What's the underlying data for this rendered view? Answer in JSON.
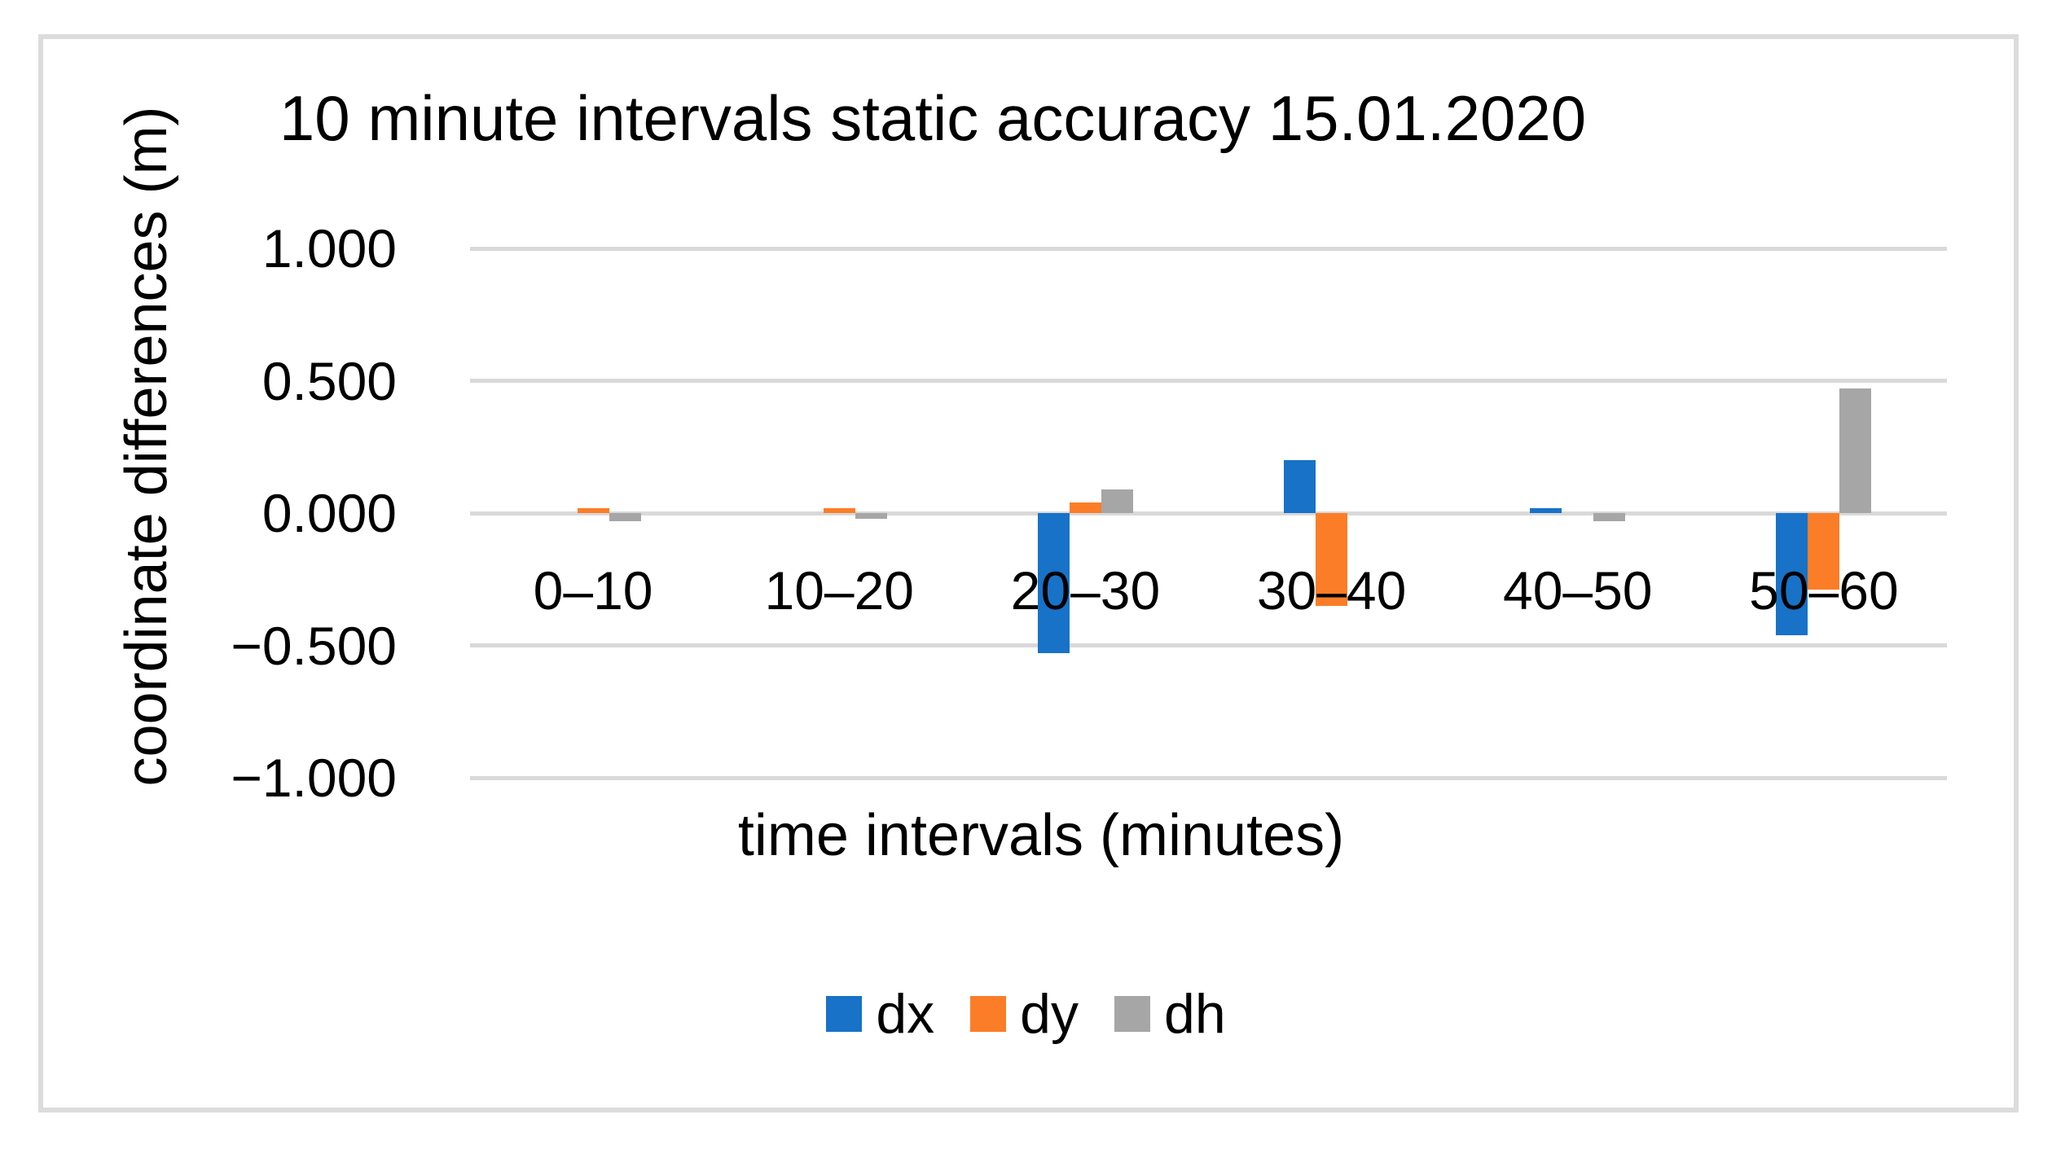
{
  "chart_data": {
    "type": "bar",
    "title": "10 minute intervals static accuracy 15.01.2020",
    "xlabel": "time intervals (minutes)",
    "ylabel": "coordinate differences (m)",
    "categories": [
      "0–10",
      "10–20",
      "20–30",
      "30–40",
      "40–50",
      "50–60"
    ],
    "series": [
      {
        "name": "dx",
        "color": "#1772c8",
        "values": [
          0.0,
          0.0,
          -0.53,
          0.2,
          0.02,
          -0.46
        ]
      },
      {
        "name": "dy",
        "color": "#fc7d27",
        "values": [
          0.02,
          0.02,
          0.04,
          -0.35,
          0.0,
          -0.29
        ]
      },
      {
        "name": "dh",
        "color": "#a6a6a6",
        "values": [
          -0.03,
          -0.02,
          0.09,
          0.0,
          -0.03,
          0.47
        ]
      }
    ],
    "ylim": [
      -1.0,
      1.0
    ],
    "y_ticks": [
      {
        "label": "1.000",
        "value": 1.0
      },
      {
        "label": "0.500",
        "value": 0.5
      },
      {
        "label": "0.000",
        "value": 0.0
      },
      {
        "label": "−0.500",
        "value": -0.5
      },
      {
        "label": "−1.000",
        "value": -1.0
      }
    ],
    "grid": true,
    "gridline_color": "#d9d9d9",
    "legend_position": "bottom",
    "legend": [
      "dx",
      "dy",
      "dh"
    ]
  }
}
